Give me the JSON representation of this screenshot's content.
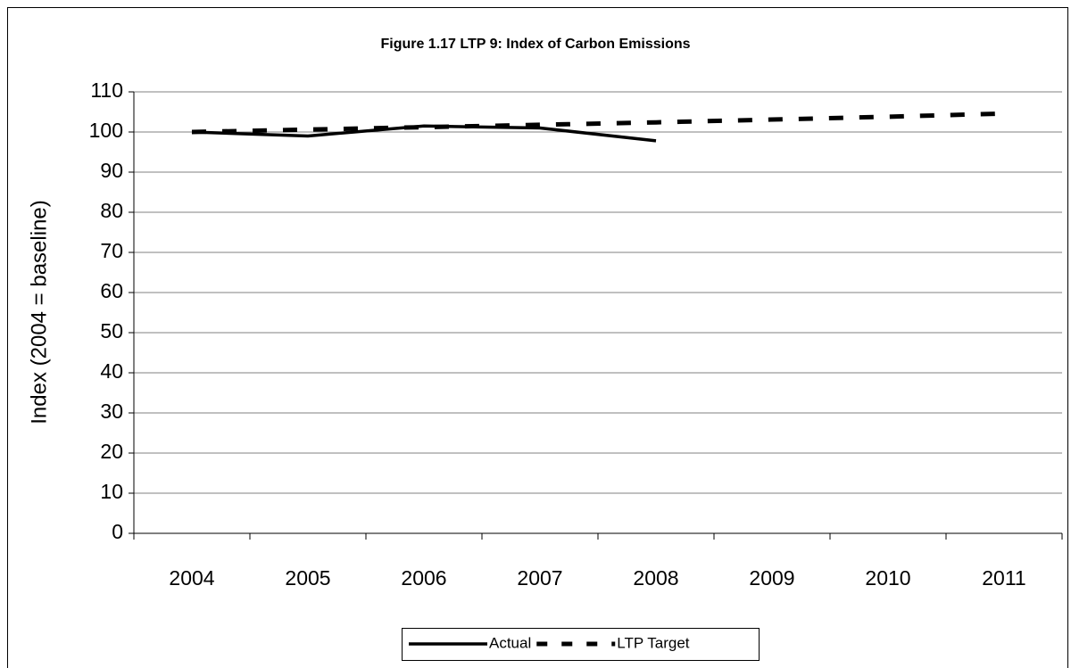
{
  "chart_data": {
    "type": "line",
    "title": "Figure 1.17 LTP 9: Index of Carbon Emissions",
    "y_label": "Index (2004 = baseline)",
    "categories": [
      "2004",
      "2005",
      "2006",
      "2007",
      "2008",
      "2009",
      "2010",
      "2011"
    ],
    "series": [
      {
        "name": "Actual",
        "color": "#000000",
        "dash": false,
        "values": [
          100,
          99,
          101.5,
          101,
          97.8,
          null,
          null,
          null
        ]
      },
      {
        "name": "LTP Target",
        "color": "#000000",
        "dash": true,
        "values": [
          100,
          100.6,
          101.2,
          101.8,
          102.4,
          103.1,
          103.8,
          104.6
        ]
      }
    ],
    "ylim": [
      0,
      110
    ],
    "yticks": [
      0,
      10,
      20,
      30,
      40,
      50,
      60,
      70,
      80,
      90,
      100,
      110
    ],
    "grid": true,
    "legend": "bottom"
  }
}
